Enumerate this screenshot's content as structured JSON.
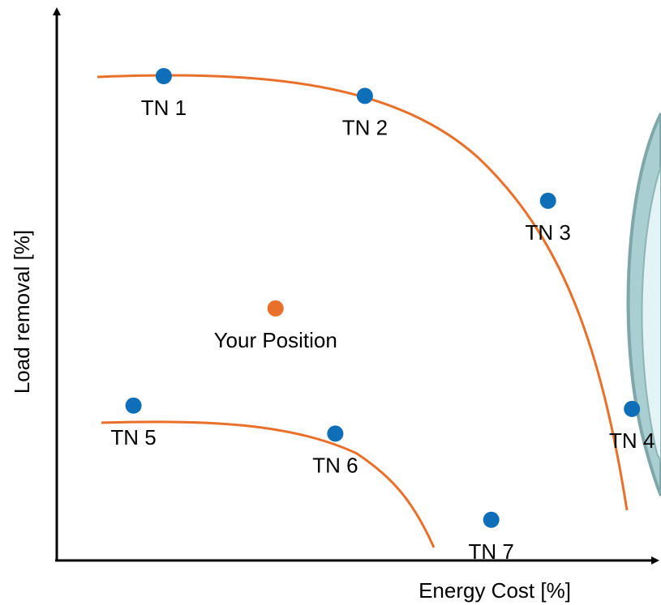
{
  "chart_data": {
    "type": "scatter",
    "title": "",
    "xlabel": "Energy Cost [%]",
    "ylabel": "Load removal [%]",
    "axis_ticks": false,
    "grid": false,
    "colors": {
      "points": "#0e6eb8",
      "highlight": "#e8702a",
      "curve": "#e8702a",
      "axis": "#000000",
      "lens_edge": "#7fa6a8",
      "lens_fill": "#c6e3e6"
    },
    "points": [
      {
        "label": "TN 1",
        "x": 17.7,
        "y": 88.2,
        "kind": "normal"
      },
      {
        "label": "TN 2",
        "x": 51.0,
        "y": 84.6,
        "kind": "normal"
      },
      {
        "label": "TN 3",
        "x": 81.3,
        "y": 65.5,
        "kind": "normal"
      },
      {
        "label": "TN 4",
        "x": 95.2,
        "y": 27.6,
        "kind": "normal"
      },
      {
        "label": "TN 5",
        "x": 12.7,
        "y": 28.2,
        "kind": "normal"
      },
      {
        "label": "TN 6",
        "x": 46.1,
        "y": 23.1,
        "kind": "normal"
      },
      {
        "label": "TN 7",
        "x": 71.9,
        "y": 7.4,
        "kind": "normal"
      },
      {
        "label": "Your Position",
        "x": 36.2,
        "y": 45.9,
        "kind": "highlight"
      }
    ]
  }
}
